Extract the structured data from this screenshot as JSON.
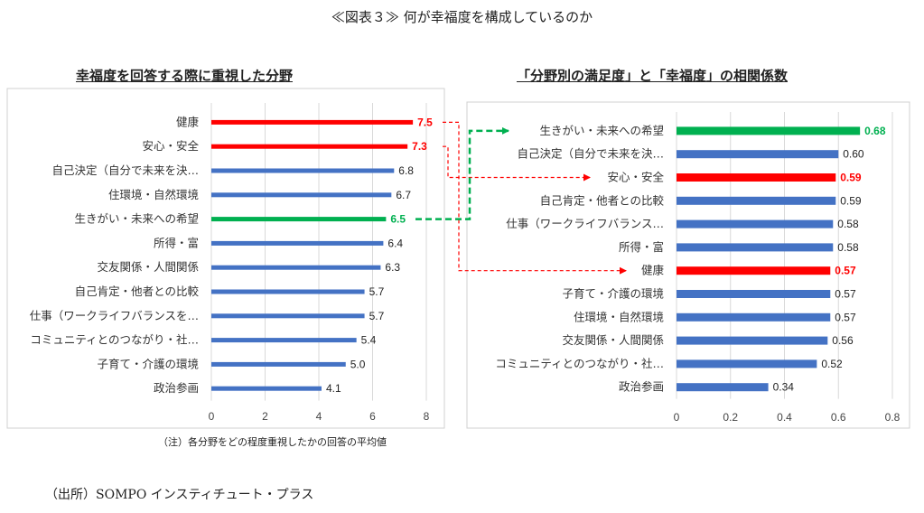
{
  "title": "≪図表３≫ 何が幸福度を構成しているのか",
  "note": "（注）各分野をどの程度重視したかの回答の平均値",
  "source": "（出所）SOMPO インスティチュート・プラス",
  "colors": {
    "blue": "#4472c4",
    "red": "#ff0000",
    "green": "#00b050"
  },
  "chart_data": [
    {
      "type": "bar",
      "orientation": "horizontal",
      "title": "幸福度を回答する際に重視した分野",
      "categories": [
        "健康",
        "安心・安全",
        "自己決定（自分で未来を決…",
        "住環境・自然環境",
        "生きがい・未来への希望",
        "所得・富",
        "交友関係・人間関係",
        "自己肯定・他者との比較",
        "仕事（ワークライフバランスを…",
        "コミュニティとのつながり・社…",
        "子育て・介護の環境",
        "政治参画"
      ],
      "values": [
        7.5,
        7.3,
        6.8,
        6.7,
        6.5,
        6.4,
        6.3,
        5.7,
        5.7,
        5.4,
        5.0,
        4.1
      ],
      "value_labels": [
        "7.5",
        "7.3",
        "6.8",
        "6.7",
        "6.5",
        "6.4",
        "6.3",
        "5.7",
        "5.7",
        "5.4",
        "5.0",
        "4.1"
      ],
      "highlight": [
        "red",
        "red",
        "blue",
        "blue",
        "green",
        "blue",
        "blue",
        "blue",
        "blue",
        "blue",
        "blue",
        "blue"
      ],
      "xlim": [
        0,
        8
      ],
      "xticks": [
        "0",
        "2",
        "4",
        "6",
        "8"
      ],
      "grid": true
    },
    {
      "type": "bar",
      "orientation": "horizontal",
      "title": "「分野別の満足度」と「幸福度」の相関係数",
      "categories": [
        "生きがい・未来への希望",
        "自己決定（自分で未来を決…",
        "安心・安全",
        "自己肯定・他者との比較",
        "仕事（ワークライフバランス…",
        "所得・富",
        "健康",
        "子育て・介護の環境",
        "住環境・自然環境",
        "交友関係・人間関係",
        "コミュニティとのつながり・社…",
        "政治参画"
      ],
      "values": [
        0.68,
        0.6,
        0.59,
        0.59,
        0.58,
        0.58,
        0.57,
        0.57,
        0.57,
        0.56,
        0.52,
        0.34
      ],
      "value_labels": [
        "0.68",
        "0.60",
        "0.59",
        "0.59",
        "0.58",
        "0.58",
        "0.57",
        "0.57",
        "0.57",
        "0.56",
        "0.52",
        "0.34"
      ],
      "highlight": [
        "green",
        "blue",
        "red",
        "blue",
        "blue",
        "blue",
        "red",
        "blue",
        "blue",
        "blue",
        "blue",
        "blue"
      ],
      "xlim": [
        0,
        0.8
      ],
      "xticks": [
        "0",
        "0.2",
        "0.4",
        "0.6",
        "0.8"
      ],
      "grid": true
    }
  ]
}
